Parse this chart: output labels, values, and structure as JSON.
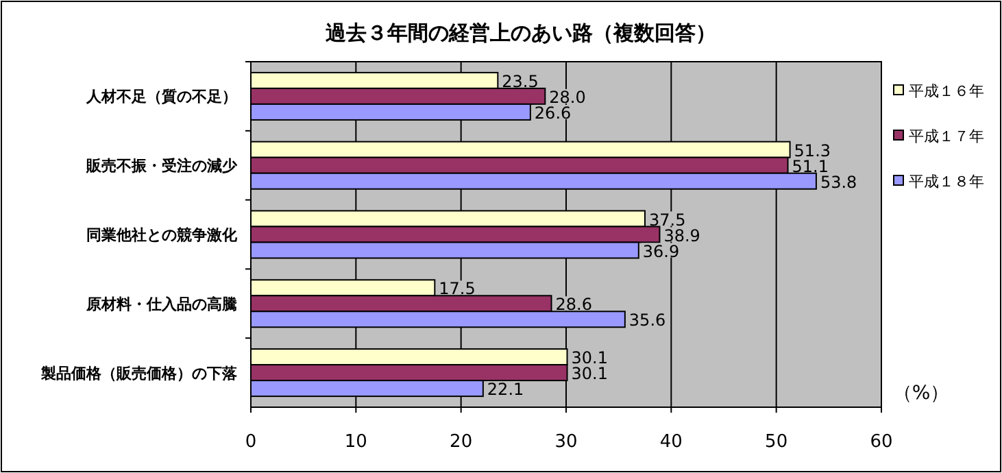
{
  "chart_data": {
    "type": "bar",
    "orientation": "horizontal",
    "title": "過去３年間の経営上のあい路（複数回答）",
    "categories": [
      "人材不足（質の不足）",
      "販売不振・受注の減少",
      "同業他社との競争激化",
      "原材料・仕入品の高騰",
      "製品価格（販売価格）の下落"
    ],
    "series": [
      {
        "name": "平成１６年",
        "color": "#ffffcc",
        "values": [
          23.5,
          51.3,
          37.5,
          17.5,
          30.1
        ],
        "value_labels": [
          "23.5",
          "51.3",
          "37.5",
          "17.5",
          "30.1"
        ]
      },
      {
        "name": "平成１７年",
        "color": "#993366",
        "values": [
          28.0,
          51.1,
          38.9,
          28.6,
          30.1
        ],
        "value_labels": [
          "28.0",
          "51.1",
          "38.9",
          "28.6",
          "30.1"
        ]
      },
      {
        "name": "平成１８年",
        "color": "#9999ff",
        "values": [
          26.6,
          53.8,
          36.9,
          35.6,
          22.1
        ],
        "value_labels": [
          "26.6",
          "53.8",
          "36.9",
          "35.6",
          "22.1"
        ]
      }
    ],
    "xlim": [
      0,
      60
    ],
    "xticks": [
      0,
      10,
      20,
      30,
      40,
      50,
      60
    ],
    "grid": "x",
    "legend": "right",
    "annotations": [
      "（%）"
    ]
  }
}
